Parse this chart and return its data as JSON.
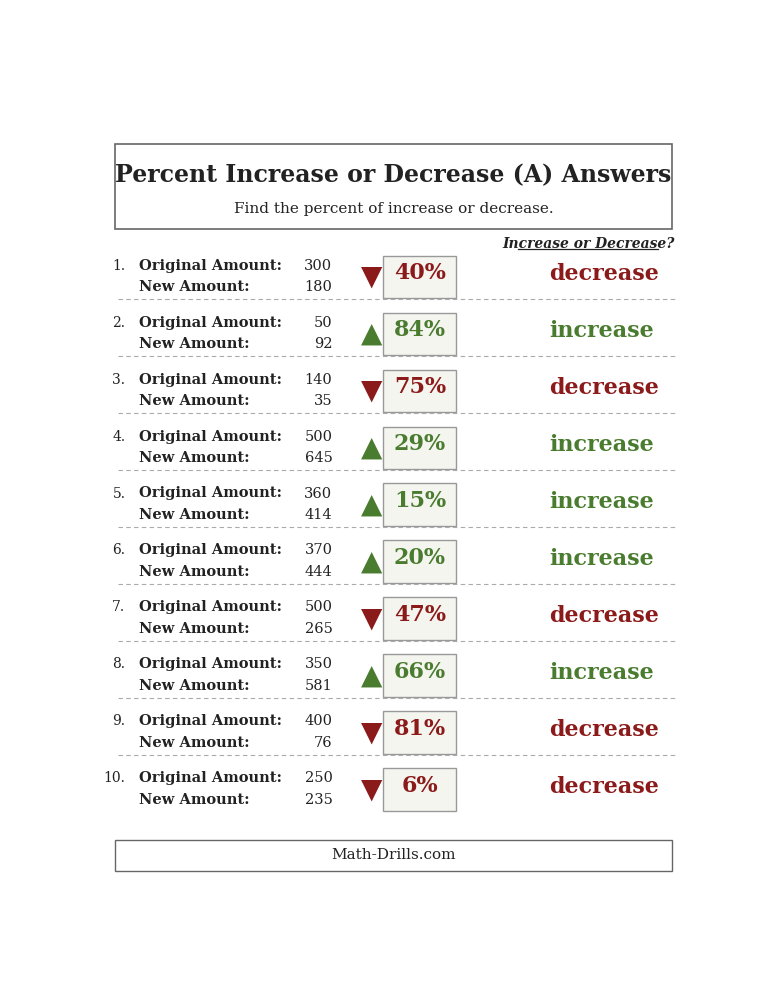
{
  "title": "Percent Increase or Decrease (A) Answers",
  "subtitle": "Find the percent of increase or decrease.",
  "col_header": "Increase or Decrease?",
  "footer": "Math-Drills.com",
  "problems": [
    {
      "num": 1,
      "orig": 300,
      "new": 180,
      "pct": "40%",
      "direction": "decrease"
    },
    {
      "num": 2,
      "orig": 50,
      "new": 92,
      "pct": "84%",
      "direction": "increase"
    },
    {
      "num": 3,
      "orig": 140,
      "new": 35,
      "pct": "75%",
      "direction": "decrease"
    },
    {
      "num": 4,
      "orig": 500,
      "new": 645,
      "pct": "29%",
      "direction": "increase"
    },
    {
      "num": 5,
      "orig": 360,
      "new": 414,
      "pct": "15%",
      "direction": "increase"
    },
    {
      "num": 6,
      "orig": 370,
      "new": 444,
      "pct": "20%",
      "direction": "increase"
    },
    {
      "num": 7,
      "orig": 500,
      "new": 265,
      "pct": "47%",
      "direction": "decrease"
    },
    {
      "num": 8,
      "orig": 350,
      "new": 581,
      "pct": "66%",
      "direction": "increase"
    },
    {
      "num": 9,
      "orig": 400,
      "new": 76,
      "pct": "81%",
      "direction": "decrease"
    },
    {
      "num": 10,
      "orig": 250,
      "new": 235,
      "pct": "6%",
      "direction": "decrease"
    }
  ],
  "increase_color": "#4a7c2f",
  "decrease_color": "#8b1a1a",
  "text_color": "#222222",
  "bg_color": "#ffffff",
  "border_color": "#666666",
  "divider_color": "#aaaaaa",
  "box_color": "#f5f5f0"
}
